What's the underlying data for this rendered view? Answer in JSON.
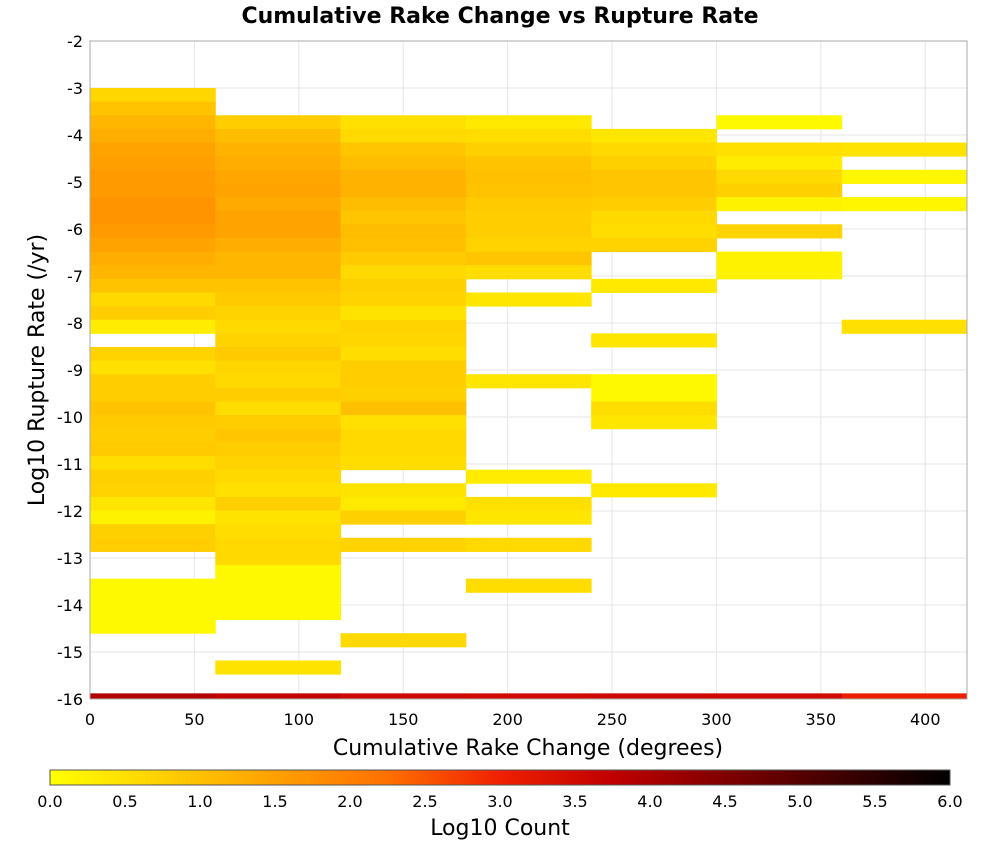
{
  "chart_data": {
    "type": "heatmap",
    "title": "Cumulative Rake Change vs Rupture Rate",
    "xlabel": "Cumulative Rake Change (degrees)",
    "ylabel": "Log10 Rupture Rate (/yr)",
    "xlim": [
      0,
      420
    ],
    "ylim": [
      -16,
      -2
    ],
    "x_ticks": [
      0,
      50,
      100,
      150,
      200,
      250,
      300,
      350,
      400
    ],
    "y_ticks": [
      -2,
      -3,
      -4,
      -5,
      -6,
      -7,
      -8,
      -9,
      -10,
      -11,
      -12,
      -13,
      -14,
      -15,
      -16
    ],
    "grid": true,
    "x_bin_width": 60,
    "y_bin_height": 0.29,
    "x_bins": [
      0,
      60,
      120,
      180,
      240,
      300,
      360
    ],
    "colorbar": {
      "label": "Log10 Count",
      "range": [
        0.0,
        6.0
      ],
      "ticks": [
        "0.0",
        "0.5",
        "1.0",
        "1.5",
        "2.0",
        "2.5",
        "3.0",
        "3.5",
        "4.0",
        "4.5",
        "5.0",
        "5.5",
        "6.0"
      ],
      "colors": [
        "#ffff00",
        "#ffd000",
        "#ffa000",
        "#ff7000",
        "#f02000",
        "#c00000",
        "#800000",
        "#400000",
        "#000000"
      ]
    },
    "cells_description": "each row: x bin start (degrees), bottom y (log10 rate), log10 count",
    "cells": [
      [
        0,
        -3.29,
        0.65
      ],
      [
        0,
        -3.58,
        0.95
      ],
      [
        0,
        -3.87,
        1.15
      ],
      [
        0,
        -4.16,
        1.3
      ],
      [
        0,
        -4.45,
        1.45
      ],
      [
        0,
        -4.74,
        1.5
      ],
      [
        0,
        -5.03,
        1.6
      ],
      [
        0,
        -5.32,
        1.6
      ],
      [
        0,
        -5.61,
        1.7
      ],
      [
        0,
        -5.9,
        1.7
      ],
      [
        0,
        -6.19,
        1.6
      ],
      [
        0,
        -6.48,
        1.45
      ],
      [
        0,
        -6.77,
        1.3
      ],
      [
        0,
        -7.06,
        1.15
      ],
      [
        0,
        -7.35,
        0.95
      ],
      [
        0,
        -7.64,
        0.6
      ],
      [
        0,
        -7.93,
        0.8
      ],
      [
        0,
        -8.22,
        0.3
      ],
      [
        0,
        -8.8,
        0.7
      ],
      [
        0,
        -9.09,
        0.5
      ],
      [
        0,
        -9.38,
        0.8
      ],
      [
        0,
        -9.67,
        0.8
      ],
      [
        0,
        -9.96,
        0.95
      ],
      [
        0,
        -10.25,
        0.85
      ],
      [
        0,
        -10.54,
        0.8
      ],
      [
        0,
        -10.83,
        0.85
      ],
      [
        0,
        -11.12,
        0.55
      ],
      [
        0,
        -11.41,
        0.75
      ],
      [
        0,
        -11.7,
        0.7
      ],
      [
        0,
        -11.99,
        0.4
      ],
      [
        0,
        -12.28,
        0.2
      ],
      [
        0,
        -12.57,
        0.75
      ],
      [
        0,
        -12.86,
        0.8
      ],
      [
        0,
        -13.73,
        0.1
      ],
      [
        0,
        -14.02,
        0.1
      ],
      [
        0,
        -14.31,
        0.1
      ],
      [
        0,
        -14.6,
        0.1
      ],
      [
        60,
        -3.87,
        0.8
      ],
      [
        60,
        -4.16,
        1.05
      ],
      [
        60,
        -4.45,
        1.2
      ],
      [
        60,
        -4.74,
        1.3
      ],
      [
        60,
        -5.03,
        1.4
      ],
      [
        60,
        -5.32,
        1.45
      ],
      [
        60,
        -5.61,
        1.35
      ],
      [
        60,
        -5.9,
        1.45
      ],
      [
        60,
        -6.19,
        1.45
      ],
      [
        60,
        -6.48,
        1.3
      ],
      [
        60,
        -6.77,
        1.15
      ],
      [
        60,
        -7.06,
        1.15
      ],
      [
        60,
        -7.35,
        0.95
      ],
      [
        60,
        -7.64,
        0.85
      ],
      [
        60,
        -7.93,
        0.7
      ],
      [
        60,
        -8.22,
        0.6
      ],
      [
        60,
        -8.51,
        0.7
      ],
      [
        60,
        -8.8,
        0.85
      ],
      [
        60,
        -9.09,
        0.65
      ],
      [
        60,
        -9.38,
        0.6
      ],
      [
        60,
        -9.67,
        0.8
      ],
      [
        60,
        -9.96,
        0.55
      ],
      [
        60,
        -10.25,
        0.8
      ],
      [
        60,
        -10.54,
        0.9
      ],
      [
        60,
        -10.83,
        0.8
      ],
      [
        60,
        -11.12,
        0.7
      ],
      [
        60,
        -11.41,
        0.6
      ],
      [
        60,
        -11.7,
        0.5
      ],
      [
        60,
        -11.99,
        0.75
      ],
      [
        60,
        -12.28,
        0.45
      ],
      [
        60,
        -12.57,
        0.55
      ],
      [
        60,
        -12.86,
        0.6
      ],
      [
        60,
        -13.15,
        0.6
      ],
      [
        60,
        -13.44,
        0.1
      ],
      [
        60,
        -13.73,
        0.1
      ],
      [
        60,
        -14.02,
        0.1
      ],
      [
        60,
        -14.31,
        0.1
      ],
      [
        60,
        -15.47,
        0.45
      ],
      [
        120,
        -3.87,
        0.5
      ],
      [
        120,
        -4.16,
        0.6
      ],
      [
        120,
        -4.45,
        0.9
      ],
      [
        120,
        -4.74,
        1.05
      ],
      [
        120,
        -5.03,
        1.2
      ],
      [
        120,
        -5.32,
        1.2
      ],
      [
        120,
        -5.61,
        1.05
      ],
      [
        120,
        -5.9,
        0.9
      ],
      [
        120,
        -6.19,
        1.05
      ],
      [
        120,
        -6.48,
        1.0
      ],
      [
        120,
        -6.77,
        0.85
      ],
      [
        120,
        -7.06,
        0.6
      ],
      [
        120,
        -7.35,
        0.75
      ],
      [
        120,
        -7.64,
        0.7
      ],
      [
        120,
        -7.93,
        0.45
      ],
      [
        120,
        -8.22,
        0.7
      ],
      [
        120,
        -8.51,
        0.65
      ],
      [
        120,
        -8.8,
        0.55
      ],
      [
        120,
        -9.09,
        0.8
      ],
      [
        120,
        -9.38,
        0.8
      ],
      [
        120,
        -9.67,
        0.75
      ],
      [
        120,
        -9.96,
        1.0
      ],
      [
        120,
        -10.25,
        0.5
      ],
      [
        120,
        -10.54,
        0.6
      ],
      [
        120,
        -10.83,
        0.6
      ],
      [
        120,
        -11.12,
        0.55
      ],
      [
        120,
        -11.7,
        0.45
      ],
      [
        120,
        -11.99,
        0.35
      ],
      [
        120,
        -12.28,
        0.75
      ],
      [
        120,
        -12.86,
        0.7
      ],
      [
        120,
        -14.89,
        0.6
      ],
      [
        180,
        -3.87,
        0.35
      ],
      [
        180,
        -4.16,
        0.55
      ],
      [
        180,
        -4.45,
        0.75
      ],
      [
        180,
        -4.74,
        0.95
      ],
      [
        180,
        -5.03,
        1.0
      ],
      [
        180,
        -5.32,
        0.95
      ],
      [
        180,
        -5.61,
        0.85
      ],
      [
        180,
        -5.9,
        0.8
      ],
      [
        180,
        -6.19,
        0.8
      ],
      [
        180,
        -6.48,
        0.7
      ],
      [
        180,
        -6.77,
        0.9
      ],
      [
        180,
        -7.06,
        0.55
      ],
      [
        180,
        -7.64,
        0.4
      ],
      [
        180,
        -9.38,
        0.4
      ],
      [
        180,
        -11.41,
        0.3
      ],
      [
        180,
        -11.99,
        0.5
      ],
      [
        180,
        -12.28,
        0.4
      ],
      [
        180,
        -12.86,
        0.6
      ],
      [
        180,
        -13.73,
        0.55
      ],
      [
        240,
        -4.16,
        0.4
      ],
      [
        240,
        -4.45,
        0.6
      ],
      [
        240,
        -4.74,
        0.75
      ],
      [
        240,
        -5.03,
        0.9
      ],
      [
        240,
        -5.32,
        0.9
      ],
      [
        240,
        -5.61,
        0.8
      ],
      [
        240,
        -5.9,
        0.6
      ],
      [
        240,
        -6.19,
        0.55
      ],
      [
        240,
        -6.48,
        0.7
      ],
      [
        240,
        -7.35,
        0.35
      ],
      [
        240,
        -8.51,
        0.4
      ],
      [
        240,
        -9.38,
        0.1
      ],
      [
        240,
        -9.67,
        0.1
      ],
      [
        240,
        -9.96,
        0.55
      ],
      [
        240,
        -10.25,
        0.4
      ],
      [
        240,
        -11.7,
        0.35
      ],
      [
        300,
        -3.87,
        0.1
      ],
      [
        300,
        -4.45,
        0.5
      ],
      [
        300,
        -4.74,
        0.3
      ],
      [
        300,
        -5.03,
        0.6
      ],
      [
        300,
        -5.32,
        0.75
      ],
      [
        300,
        -5.61,
        0.2
      ],
      [
        300,
        -6.19,
        0.7
      ],
      [
        300,
        -6.77,
        0.2
      ],
      [
        300,
        -7.06,
        0.2
      ],
      [
        360,
        -4.45,
        0.45
      ],
      [
        360,
        -5.03,
        0.15
      ],
      [
        360,
        -5.61,
        0.15
      ],
      [
        360,
        -8.22,
        0.5
      ]
    ],
    "bottom_strip": {
      "y": -16,
      "values_description": "x bin start (degrees), log10 count",
      "values": [
        [
          0,
          3.9
        ],
        [
          60,
          3.7
        ],
        [
          120,
          3.55
        ],
        [
          180,
          3.5
        ],
        [
          240,
          3.55
        ],
        [
          300,
          3.5
        ],
        [
          360,
          3.05
        ]
      ]
    }
  }
}
